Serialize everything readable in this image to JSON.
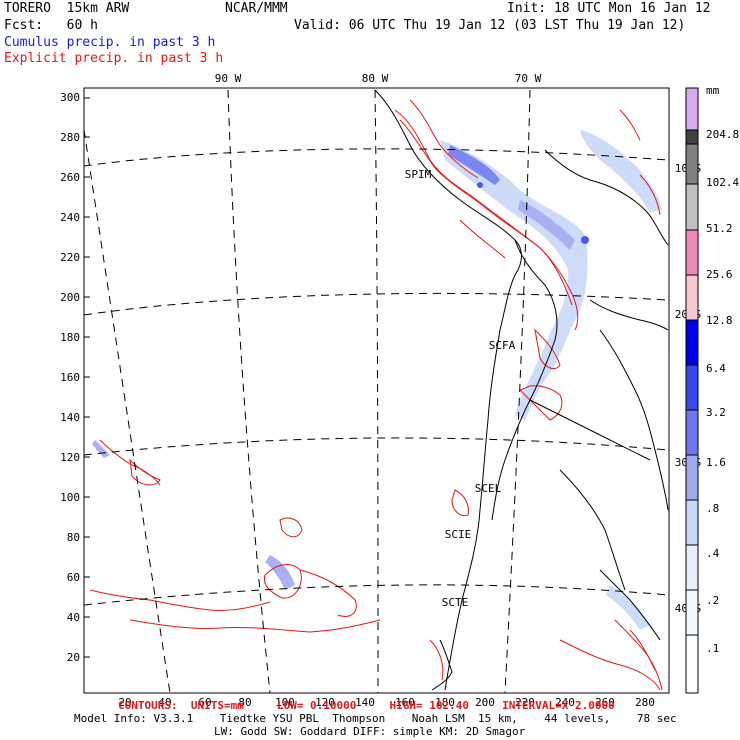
{
  "header": {
    "model": "TORERO  15km ARW",
    "org": "NCAR/MMM",
    "init": "Init: 18 UTC Mon 16 Jan 12",
    "fcst": "Fcst:   60 h",
    "valid": "Valid: 06 UTC Thu 19 Jan 12 (03 LST Thu 19 Jan 12)",
    "field_cumulus": "Cumulus precip. in past 3 h",
    "field_explicit": "Explicit precip. in past 3 h"
  },
  "colors": {
    "cumulus_text": "#1a1ad8",
    "explicit_contour": "#e01818",
    "map_lines": "#000000"
  },
  "longitude_labels": [
    "90 W",
    "80 W",
    "70 W"
  ],
  "latitude_labels": [
    "10 S",
    "20 S",
    "30 S",
    "40 S"
  ],
  "y_axis_ticks": [
    "300",
    "280",
    "260",
    "240",
    "220",
    "200",
    "180",
    "160",
    "140",
    "120",
    "100",
    "80",
    "60",
    "40",
    "20"
  ],
  "x_axis_ticks": [
    "20",
    "40",
    "60",
    "80",
    "100",
    "120",
    "140",
    "160",
    "180",
    "200",
    "220",
    "240",
    "260",
    "280"
  ],
  "city_labels": [
    "SPIM",
    "SCFA",
    "SCEL",
    "SCIE",
    "SCTE"
  ],
  "colorbar": {
    "unit": "mm",
    "levels": [
      "204.8",
      "102.4",
      "51.2",
      "25.6",
      "12.8",
      "6.4",
      "3.2",
      "1.6",
      ".8",
      ".4",
      ".2",
      ".1"
    ],
    "colors": [
      "#d8a8f0",
      "#404040",
      "#808080",
      "#c0c0c0",
      "#f088b8",
      "#f8c8d0",
      "#0000f0",
      "#3848f0",
      "#7078f0",
      "#a0a8f0",
      "#c8d8f8",
      "#e8f0ff",
      "#f4f8ff",
      "#ffffff"
    ]
  },
  "footer": {
    "contours": "CONTOURS:  UNITS=mm     LOW= 0.10000     HIGH= 102.40     INTERVAL=X 2.0000",
    "model_info": "Model Info: V3.3.1    Tiedtke YSU PBL  Thompson    Noah LSM  15 km,    44 levels,    78 sec",
    "physics": "LW: Godd SW: Goddard DIFF: simple KM: 2D Smagor"
  }
}
